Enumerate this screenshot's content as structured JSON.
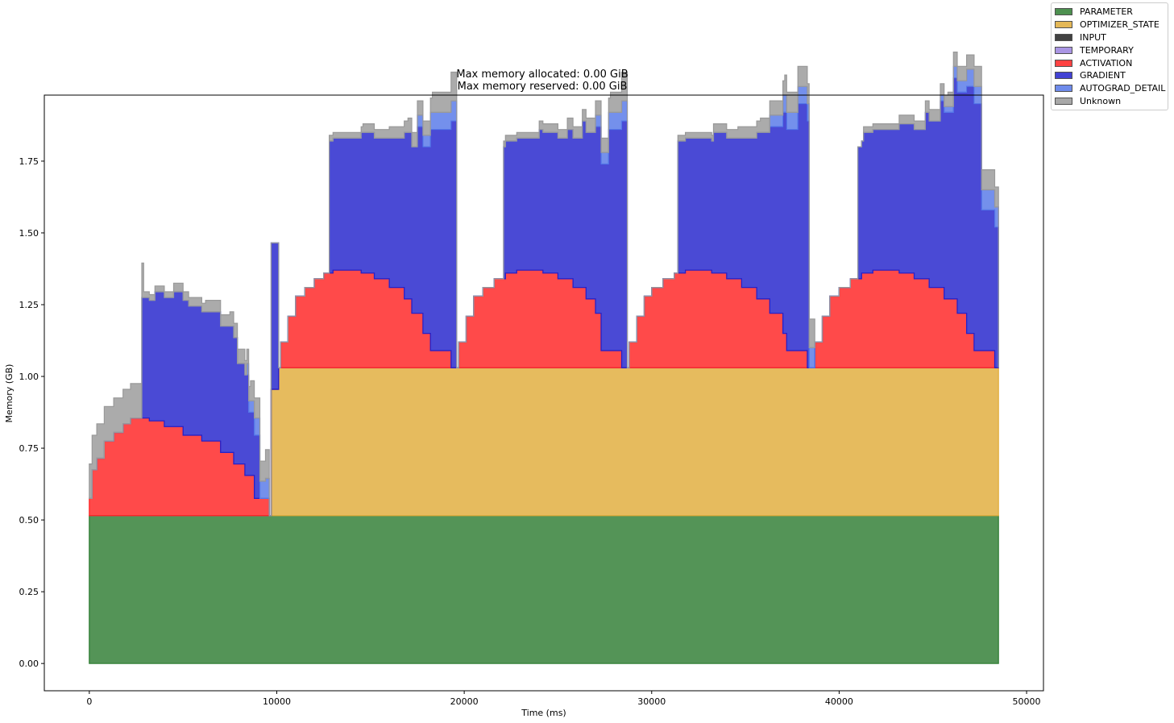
{
  "chart_data": {
    "type": "area",
    "title_lines": [
      "Max memory allocated: 0.00 GiB",
      "Max memory reserved: 0.00 GiB"
    ],
    "xlabel": "Time (ms)",
    "ylabel": "Memory (GB)",
    "xlim": [
      -2400,
      50900
    ],
    "ylim": [
      -0.095,
      1.98
    ],
    "xticks": [
      0,
      10000,
      20000,
      30000,
      40000,
      50000
    ],
    "xtick_labels": [
      "0",
      "10000",
      "20000",
      "30000",
      "40000",
      "50000"
    ],
    "yticks": [
      0,
      0.25,
      0.5,
      0.75,
      1.0,
      1.25,
      1.5,
      1.75
    ],
    "ytick_labels": [
      "0.00",
      "0.25",
      "0.50",
      "0.75",
      "1.00",
      "1.25",
      "1.50",
      "1.75"
    ],
    "legend_position": "upper-right-outside",
    "series": [
      {
        "name": "PARAMETER",
        "color": "#2e7d32",
        "x": [
          0,
          48500
        ],
        "y": [
          0.515,
          0.515
        ]
      },
      {
        "name": "OPTIMIZER_STATE",
        "color": "#e0ac3a",
        "x": [
          0,
          9600,
          9700,
          10000,
          10100,
          48500
        ],
        "y": [
          0,
          0,
          0.44,
          0.44,
          0.515,
          0.515
        ]
      },
      {
        "name": "INPUT",
        "color": "#222222",
        "x": [
          0,
          48500
        ],
        "y": [
          0.0,
          0.0
        ]
      },
      {
        "name": "TEMPORARY",
        "color": "#9c84e0",
        "x": [
          0,
          48500
        ],
        "y": [
          0.0,
          0.0
        ]
      },
      {
        "name": "ACTIVATION",
        "color": "#ff2222",
        "x": [
          0,
          150,
          400,
          800,
          1300,
          1800,
          2200,
          2700,
          3200,
          4000,
          5000,
          6000,
          7000,
          7700,
          8300,
          8800,
          9100,
          9600,
          9700,
          10000,
          10200,
          10600,
          11000,
          11500,
          12000,
          12500,
          13000,
          13800,
          14500,
          15200,
          16000,
          16800,
          17200,
          17800,
          18200,
          19300,
          19400,
          19700,
          20100,
          20500,
          21000,
          21600,
          22200,
          22800,
          23500,
          24200,
          25000,
          25800,
          26500,
          27000,
          27300,
          28400,
          28500,
          28800,
          29200,
          29600,
          30000,
          30600,
          31200,
          31800,
          32400,
          33200,
          34000,
          34800,
          35600,
          36300,
          37000,
          37200,
          38300,
          38400,
          38700,
          39100,
          39500,
          40000,
          40600,
          41200,
          41800,
          42500,
          43200,
          44000,
          44800,
          45600,
          46300,
          46800,
          47200,
          48300,
          48500
        ],
        "y": [
          0.06,
          0.16,
          0.2,
          0.26,
          0.29,
          0.32,
          0.34,
          0.34,
          0.33,
          0.31,
          0.28,
          0.26,
          0.22,
          0.18,
          0.14,
          0.06,
          0.06,
          0.0,
          0.0,
          0.0,
          0.09,
          0.18,
          0.25,
          0.28,
          0.31,
          0.33,
          0.34,
          0.34,
          0.33,
          0.31,
          0.28,
          0.24,
          0.19,
          0.12,
          0.06,
          0.0,
          0.0,
          0.09,
          0.18,
          0.25,
          0.28,
          0.31,
          0.33,
          0.34,
          0.34,
          0.33,
          0.31,
          0.28,
          0.24,
          0.19,
          0.06,
          0.0,
          0.0,
          0.09,
          0.18,
          0.25,
          0.28,
          0.31,
          0.33,
          0.34,
          0.34,
          0.33,
          0.31,
          0.28,
          0.24,
          0.19,
          0.12,
          0.06,
          0.0,
          0.0,
          0.09,
          0.18,
          0.25,
          0.28,
          0.31,
          0.33,
          0.34,
          0.34,
          0.33,
          0.31,
          0.28,
          0.24,
          0.19,
          0.12,
          0.06,
          0.0,
          0.0
        ]
      },
      {
        "name": "GRADIENT",
        "color": "#2222cc",
        "x": [
          0,
          2600,
          2800,
          3500,
          4500,
          5300,
          6200,
          7000,
          7900,
          8500,
          9100,
          9600,
          9700,
          10000,
          10100,
          12600,
          12800,
          14500,
          16000,
          16800,
          17500,
          18200,
          19300,
          19600,
          21800,
          22100,
          24000,
          25500,
          26300,
          27000,
          27700,
          28400,
          28700,
          31100,
          31400,
          33300,
          34800,
          35600,
          36300,
          37000,
          37800,
          38400,
          38700,
          41000,
          41300,
          43200,
          44600,
          45400,
          46100,
          46800,
          47600,
          48500
        ],
        "y": [
          0,
          0,
          0.42,
          0.45,
          0.47,
          0.45,
          0.45,
          0.44,
          0.35,
          0.22,
          0.0,
          0.0,
          0.51,
          0.51,
          0.0,
          0.0,
          0.46,
          0.49,
          0.52,
          0.58,
          0.65,
          0.77,
          0.86,
          0.0,
          0.0,
          0.46,
          0.49,
          0.52,
          0.58,
          0.65,
          0.77,
          0.86,
          0.0,
          0.0,
          0.46,
          0.49,
          0.52,
          0.58,
          0.65,
          0.77,
          0.86,
          0.0,
          0.0,
          0.46,
          0.49,
          0.52,
          0.58,
          0.65,
          0.77,
          0.86,
          0.49,
          0.0
        ]
      },
      {
        "name": "AUTOGRAD_DETAIL",
        "color": "#5577e8",
        "x": [
          0,
          8400,
          8800,
          9400,
          9600,
          10000,
          17500,
          18200,
          19300,
          19600,
          27000,
          27700,
          28400,
          28700,
          36300,
          37000,
          38400,
          38700,
          45400,
          46100,
          46800,
          47600,
          48500
        ],
        "y": [
          0.0,
          0.04,
          0.06,
          0.07,
          0.0,
          0.0,
          0.04,
          0.06,
          0.07,
          0.0,
          0.04,
          0.06,
          0.07,
          0.0,
          0.04,
          0.06,
          0.07,
          0.0,
          0.02,
          0.04,
          0.06,
          0.07,
          0.0
        ]
      },
      {
        "name": "Unknown",
        "color": "#999999",
        "x": [
          0,
          2900,
          4500,
          6200,
          7500,
          8600,
          9400,
          9600,
          10000,
          12800,
          14600,
          16000,
          17000,
          18300,
          19300,
          19600,
          22100,
          24000,
          25500,
          26500,
          27800,
          28400,
          28700,
          31400,
          33300,
          34600,
          35800,
          37100,
          38400,
          38700,
          41300,
          43200,
          44600,
          45800,
          47200,
          48500
        ],
        "y": [
          0.12,
          0.02,
          0.03,
          0.04,
          0.05,
          0.07,
          0.1,
          0.0,
          0.0,
          0.02,
          0.03,
          0.04,
          0.05,
          0.07,
          0.1,
          0.0,
          0.02,
          0.03,
          0.04,
          0.05,
          0.07,
          0.1,
          0.0,
          0.02,
          0.03,
          0.04,
          0.05,
          0.07,
          0.1,
          0.0,
          0.02,
          0.03,
          0.04,
          0.05,
          0.07,
          0.0
        ]
      }
    ]
  }
}
